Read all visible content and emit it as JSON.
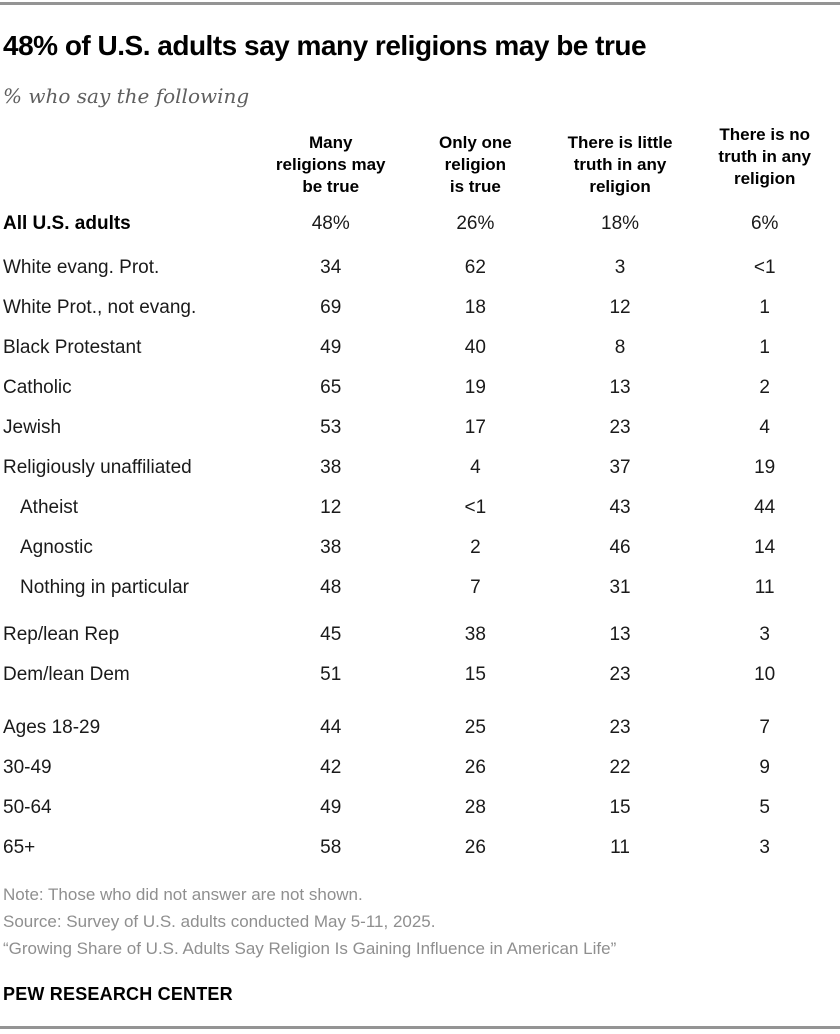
{
  "header": {
    "title": "48% of U.S. adults say many religions may be true",
    "subtitle": "% who say the following"
  },
  "chart_data": {
    "type": "table",
    "title": "48% of U.S. adults say many religions may be true",
    "subtitle": "% who say the following",
    "unit": "percent of U.S. adults",
    "columns": [
      "Many\nreligions may\nbe true",
      "Only one\nreligion\nis true",
      "There is little\ntruth in any\nreligion",
      "There is no\ntruth in any\nreligion"
    ],
    "rows": [
      {
        "label": "All U.S. adults",
        "values": [
          "48%",
          "26%",
          "18%",
          "6%"
        ],
        "bold": true,
        "indent": false,
        "group": "all"
      },
      {
        "label": "White evang. Prot.",
        "values": [
          "34",
          "62",
          "3",
          "<1"
        ],
        "bold": false,
        "indent": false,
        "group": "tradition"
      },
      {
        "label": "White Prot., not evang.",
        "values": [
          "69",
          "18",
          "12",
          "1"
        ],
        "bold": false,
        "indent": false,
        "group": "tradition"
      },
      {
        "label": "Black Protestant",
        "values": [
          "49",
          "40",
          "8",
          "1"
        ],
        "bold": false,
        "indent": false,
        "group": "tradition"
      },
      {
        "label": "Catholic",
        "values": [
          "65",
          "19",
          "13",
          "2"
        ],
        "bold": false,
        "indent": false,
        "group": "tradition"
      },
      {
        "label": "Jewish",
        "values": [
          "53",
          "17",
          "23",
          "4"
        ],
        "bold": false,
        "indent": false,
        "group": "tradition"
      },
      {
        "label": "Religiously unaffiliated",
        "values": [
          "38",
          "4",
          "37",
          "19"
        ],
        "bold": false,
        "indent": false,
        "group": "tradition"
      },
      {
        "label": "Atheist",
        "values": [
          "12",
          "<1",
          "43",
          "44"
        ],
        "bold": false,
        "indent": true,
        "group": "tradition"
      },
      {
        "label": "Agnostic",
        "values": [
          "38",
          "2",
          "46",
          "14"
        ],
        "bold": false,
        "indent": true,
        "group": "tradition"
      },
      {
        "label": "Nothing in particular",
        "values": [
          "48",
          "7",
          "31",
          "11"
        ],
        "bold": false,
        "indent": true,
        "group": "tradition"
      },
      {
        "label": "Rep/lean Rep",
        "values": [
          "45",
          "38",
          "13",
          "3"
        ],
        "bold": false,
        "indent": false,
        "group": "party"
      },
      {
        "label": "Dem/lean Dem",
        "values": [
          "51",
          "15",
          "23",
          "10"
        ],
        "bold": false,
        "indent": false,
        "group": "party"
      },
      {
        "label": "Ages 18-29",
        "values": [
          "44",
          "25",
          "23",
          "7"
        ],
        "bold": false,
        "indent": false,
        "group": "age"
      },
      {
        "label": "30-49",
        "values": [
          "42",
          "26",
          "22",
          "9"
        ],
        "bold": false,
        "indent": false,
        "group": "age"
      },
      {
        "label": "50-64",
        "values": [
          "49",
          "28",
          "15",
          "5"
        ],
        "bold": false,
        "indent": false,
        "group": "age"
      },
      {
        "label": "65+",
        "values": [
          "58",
          "26",
          "11",
          "3"
        ],
        "bold": false,
        "indent": false,
        "group": "age"
      }
    ],
    "legend_position": "none",
    "grid": false
  },
  "footer": {
    "note": "Note: Those who did not answer are not shown.",
    "source": "Source: Survey of U.S. adults conducted May 5-11, 2025.",
    "report": "“Growing Share of U.S. Adults Say Religion Is Gaining Influence in American Life”",
    "branding": "PEW RESEARCH CENTER"
  },
  "colors": {
    "title_text": "#000000",
    "body_text": "#1a1a1a",
    "subtitle_text": "#5f5f5f",
    "note_text": "#8f8f8f",
    "rule": "#949494",
    "background": "#ffffff"
  }
}
